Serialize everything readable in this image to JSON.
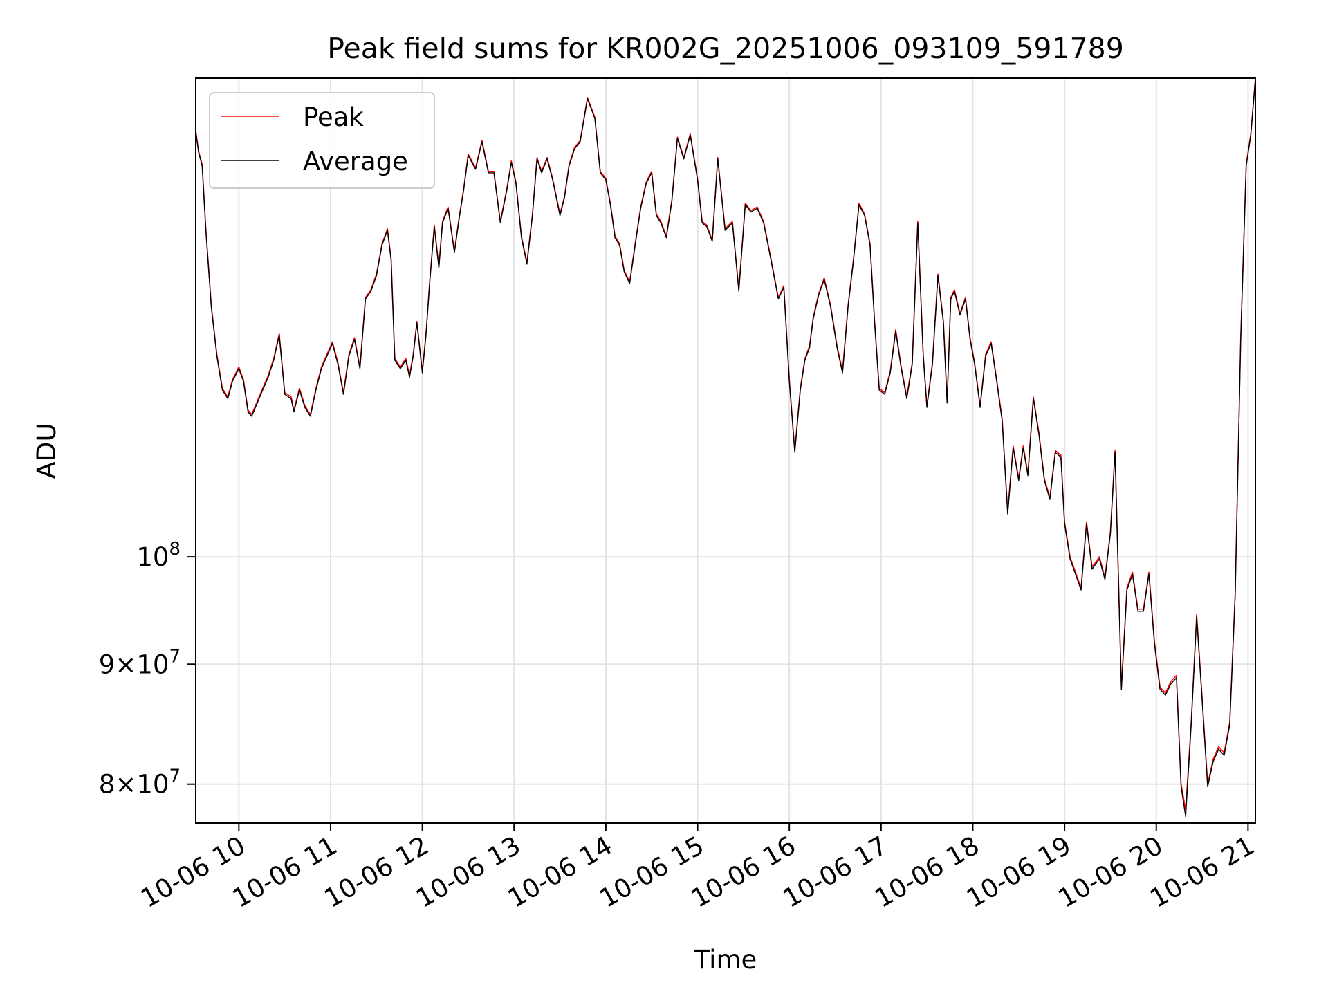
{
  "chart_data": {
    "type": "line",
    "title": "Peak field sums for KR002G_20251006_093109_591789",
    "xlabel": "Time",
    "ylabel": "ADU",
    "yscale": "log",
    "xlim": [
      9.53,
      21.08
    ],
    "ylim": [
      77000000,
      160000000
    ],
    "grid": true,
    "legend_position": "upper-left",
    "x_ticks": [
      {
        "value": 10,
        "label": "10-06 10"
      },
      {
        "value": 11,
        "label": "10-06 11"
      },
      {
        "value": 12,
        "label": "10-06 12"
      },
      {
        "value": 13,
        "label": "10-06 13"
      },
      {
        "value": 14,
        "label": "10-06 14"
      },
      {
        "value": 15,
        "label": "10-06 15"
      },
      {
        "value": 16,
        "label": "10-06 16"
      },
      {
        "value": 17,
        "label": "10-06 17"
      },
      {
        "value": 18,
        "label": "10-06 18"
      },
      {
        "value": 19,
        "label": "10-06 19"
      },
      {
        "value": 20,
        "label": "10-06 20"
      },
      {
        "value": 21,
        "label": "10-06 21"
      }
    ],
    "y_ticks": [
      {
        "value": 80000000,
        "mant": "8",
        "exp": "7"
      },
      {
        "value": 90000000,
        "mant": "9",
        "exp": "7"
      },
      {
        "value": 100000000,
        "mant": "",
        "exp": "8"
      }
    ],
    "times": [
      9.53,
      9.56,
      9.6,
      9.64,
      9.7,
      9.76,
      9.82,
      9.88,
      9.93,
      10.0,
      10.05,
      10.1,
      10.14,
      10.2,
      10.26,
      10.32,
      10.38,
      10.44,
      10.5,
      10.57,
      10.6,
      10.66,
      10.72,
      10.78,
      10.84,
      10.9,
      10.96,
      11.02,
      11.08,
      11.14,
      11.2,
      11.26,
      11.32,
      11.38,
      11.44,
      11.5,
      11.56,
      11.62,
      11.66,
      11.7,
      11.76,
      11.82,
      11.86,
      11.9,
      11.94,
      12.0,
      12.04,
      12.08,
      12.13,
      12.18,
      12.22,
      12.28,
      12.35,
      12.4,
      12.45,
      12.5,
      12.58,
      12.65,
      12.72,
      12.78,
      12.85,
      12.92,
      12.97,
      13.02,
      13.08,
      13.14,
      13.2,
      13.25,
      13.3,
      13.36,
      13.42,
      13.5,
      13.55,
      13.6,
      13.66,
      13.72,
      13.8,
      13.88,
      13.94,
      14.0,
      14.05,
      14.1,
      14.15,
      14.2,
      14.26,
      14.32,
      14.38,
      14.44,
      14.5,
      14.55,
      14.6,
      14.66,
      14.72,
      14.78,
      14.85,
      14.92,
      15.0,
      15.05,
      15.1,
      15.16,
      15.22,
      15.3,
      15.38,
      15.45,
      15.52,
      15.58,
      15.65,
      15.72,
      15.8,
      15.88,
      15.94,
      16.0,
      16.06,
      16.12,
      16.17,
      16.22,
      16.26,
      16.32,
      16.38,
      16.45,
      16.52,
      16.58,
      16.64,
      16.7,
      16.76,
      16.82,
      16.88,
      16.93,
      16.98,
      17.04,
      17.1,
      17.16,
      17.22,
      17.28,
      17.34,
      17.4,
      17.46,
      17.5,
      17.56,
      17.62,
      17.68,
      17.72,
      17.76,
      17.8,
      17.86,
      17.92,
      17.97,
      18.02,
      18.08,
      18.14,
      18.2,
      18.26,
      18.32,
      18.38,
      18.44,
      18.5,
      18.55,
      18.6,
      18.66,
      18.72,
      18.78,
      18.84,
      18.9,
      18.96,
      19.0,
      19.06,
      19.12,
      19.18,
      19.24,
      19.3,
      19.38,
      19.44,
      19.5,
      19.55,
      19.62,
      19.68,
      19.74,
      19.8,
      19.86,
      19.92,
      19.98,
      20.04,
      20.1,
      20.16,
      20.22,
      20.27,
      20.32,
      20.38,
      20.44,
      20.5,
      20.56,
      20.62,
      20.68,
      20.74,
      20.8,
      20.86,
      20.92,
      20.98,
      21.03,
      21.08
    ],
    "series": [
      {
        "name": "Peak",
        "color": "#ff0000",
        "values": [
          152.0,
          149.0,
          147.0,
          138.0,
          128.0,
          122.0,
          118.0,
          117.0,
          119.0,
          120.5,
          119.0,
          115.5,
          115.0,
          116.5,
          118.0,
          119.5,
          121.5,
          124.5,
          117.5,
          117.0,
          115.5,
          118.0,
          116.0,
          115.0,
          118.0,
          120.5,
          122.0,
          123.5,
          121.0,
          117.5,
          122.0,
          124.0,
          120.5,
          129.0,
          130.0,
          132.0,
          136.0,
          138.0,
          134.0,
          121.5,
          120.5,
          121.5,
          119.5,
          122.0,
          126.0,
          120.0,
          124.5,
          131.0,
          138.5,
          133.0,
          139.0,
          141.0,
          135.0,
          139.5,
          143.5,
          148.5,
          146.5,
          150.5,
          146.0,
          146.0,
          139.0,
          143.5,
          147.5,
          144.5,
          137.0,
          133.5,
          140.0,
          148.0,
          146.0,
          148.0,
          145.0,
          140.0,
          142.5,
          147.0,
          149.5,
          150.5,
          157.0,
          154.0,
          146.0,
          145.0,
          141.5,
          137.0,
          136.0,
          132.5,
          131.0,
          136.0,
          141.0,
          144.5,
          146.0,
          140.0,
          139.0,
          137.0,
          142.0,
          151.0,
          148.0,
          151.5,
          145.0,
          139.0,
          138.5,
          136.5,
          148.0,
          138.0,
          139.0,
          130.0,
          141.5,
          140.5,
          141.0,
          139.0,
          134.0,
          129.0,
          130.5,
          119.0,
          111.0,
          118.0,
          121.5,
          123.0,
          126.5,
          129.5,
          131.5,
          128.0,
          123.0,
          120.0,
          128.0,
          134.0,
          141.5,
          140.0,
          136.0,
          126.0,
          118.0,
          117.5,
          120.0,
          125.0,
          120.5,
          117.0,
          121.0,
          139.0,
          122.0,
          116.0,
          121.0,
          132.0,
          126.0,
          116.5,
          129.0,
          130.0,
          127.0,
          129.0,
          124.0,
          121.0,
          116.0,
          122.0,
          123.5,
          119.0,
          114.5,
          104.5,
          111.5,
          108.0,
          111.5,
          108.5,
          117.0,
          113.0,
          108.0,
          106.0,
          111.0,
          110.5,
          103.5,
          100.0,
          98.5,
          97.0,
          103.5,
          99.0,
          100.0,
          98.0,
          102.5,
          111.0,
          88.0,
          97.0,
          98.5,
          95.0,
          95.0,
          98.5,
          92.0,
          88.0,
          87.5,
          88.5,
          89.0,
          80.0,
          78.0,
          85.0,
          94.5,
          87.0,
          80.0,
          82.0,
          83.0,
          82.5,
          85.0,
          96.5,
          124.0,
          147.0,
          151.5,
          160.0
        ]
      },
      {
        "name": "Average",
        "color": "#000000",
        "values": [
          151.8,
          148.8,
          146.8,
          137.8,
          127.8,
          121.8,
          117.8,
          116.8,
          118.8,
          120.3,
          118.8,
          115.3,
          114.8,
          116.3,
          117.8,
          119.3,
          121.3,
          124.3,
          117.3,
          116.8,
          115.3,
          117.8,
          115.8,
          114.8,
          117.8,
          120.3,
          121.8,
          123.3,
          120.8,
          117.3,
          121.8,
          123.8,
          120.3,
          128.8,
          129.8,
          131.8,
          135.8,
          137.8,
          133.8,
          121.3,
          120.3,
          121.3,
          119.3,
          121.8,
          125.8,
          119.8,
          124.3,
          130.8,
          138.3,
          132.8,
          138.8,
          140.8,
          134.8,
          139.3,
          143.3,
          148.3,
          146.3,
          150.3,
          145.8,
          145.8,
          138.8,
          143.3,
          147.3,
          144.3,
          136.8,
          133.3,
          139.8,
          147.8,
          145.8,
          147.8,
          144.8,
          139.8,
          142.3,
          146.8,
          149.3,
          150.3,
          156.8,
          153.8,
          145.8,
          144.8,
          141.3,
          136.8,
          135.8,
          132.3,
          130.8,
          135.8,
          140.8,
          144.3,
          145.8,
          139.8,
          138.8,
          136.8,
          141.8,
          150.8,
          147.8,
          151.3,
          144.8,
          138.8,
          138.3,
          136.3,
          147.8,
          137.8,
          138.8,
          129.8,
          141.3,
          140.3,
          140.8,
          138.8,
          133.8,
          128.8,
          130.3,
          118.8,
          110.8,
          117.8,
          121.3,
          122.8,
          126.3,
          129.3,
          131.3,
          127.8,
          122.8,
          119.8,
          127.8,
          133.8,
          141.3,
          139.8,
          135.8,
          125.8,
          117.8,
          117.3,
          119.8,
          124.8,
          120.3,
          116.8,
          120.8,
          138.8,
          121.8,
          115.8,
          120.8,
          131.8,
          125.8,
          116.3,
          128.8,
          129.8,
          126.8,
          128.8,
          123.8,
          120.8,
          115.8,
          121.8,
          123.3,
          118.8,
          114.3,
          104.3,
          111.3,
          107.8,
          111.3,
          108.3,
          116.8,
          112.8,
          107.8,
          105.8,
          110.8,
          110.3,
          103.3,
          99.8,
          98.3,
          96.8,
          103.3,
          98.8,
          99.8,
          97.8,
          102.3,
          110.8,
          87.8,
          96.8,
          98.3,
          94.8,
          94.8,
          98.3,
          91.8,
          87.8,
          87.3,
          88.3,
          88.8,
          79.8,
          77.5,
          84.8,
          94.3,
          86.8,
          79.8,
          81.8,
          82.8,
          82.3,
          84.8,
          96.3,
          123.8,
          146.8,
          151.3,
          159.8
        ]
      }
    ]
  }
}
